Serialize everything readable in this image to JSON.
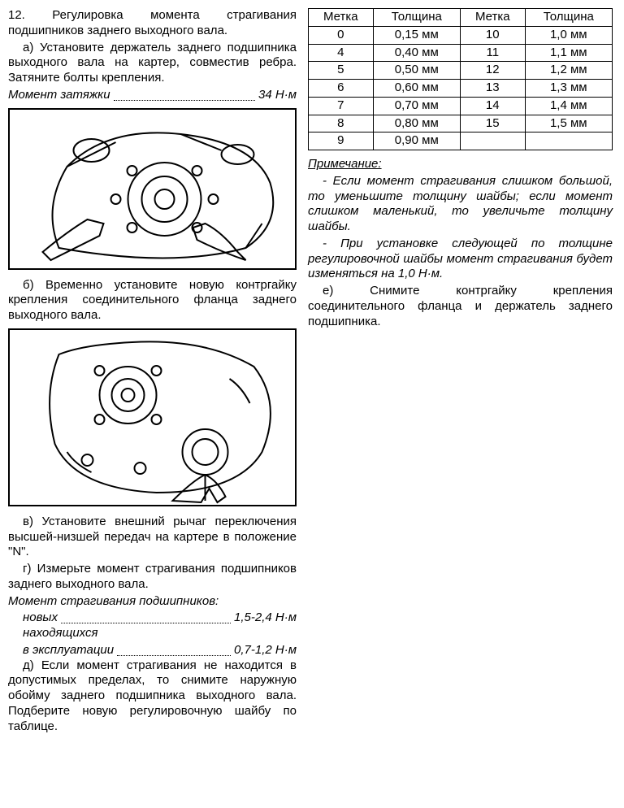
{
  "left": {
    "p1": "12. Регулировка момента страгивания подшипников заднего выходного вала.",
    "p2": "а) Установите держатель заднего подшипника выходного вала на картер, совместив ребра. Затяните болты крепления.",
    "torque1_label": "Момент затяжки",
    "torque1_value": "34 Н·м",
    "p3": "б) Временно установите новую контргайку крепления соединительного фланца заднего выходного вала.",
    "p4": "в) Установите внешний рычаг переключения высшей-низшей передач на картере в положение \"N\".",
    "p5": "г) Измерьте момент страгивания подшипников заднего выходного вала.",
    "torque2_header": "Момент страгивания подшипников:",
    "torque2a_label": "новых",
    "torque2a_value": "1,5-2,4 Н·м",
    "torque2b_label1": "находящихся",
    "torque2b_label2": "в эксплуатации",
    "torque2b_value": "0,7-1,2 Н·м",
    "p6": "д) Если момент страгивания не находится в допустимых пределах, то снимите наружную обойму заднего подшипника выходного вала. Подберите новую регулировочную шайбу по таблице."
  },
  "right": {
    "table": {
      "headers": [
        "Метка",
        "Толщина",
        "Метка",
        "Толщина"
      ],
      "rows": [
        [
          "0",
          "0,15 мм",
          "10",
          "1,0 мм"
        ],
        [
          "4",
          "0,40 мм",
          "11",
          "1,1 мм"
        ],
        [
          "5",
          "0,50 мм",
          "12",
          "1,2 мм"
        ],
        [
          "6",
          "0,60 мм",
          "13",
          "1,3 мм"
        ],
        [
          "7",
          "0,70 мм",
          "14",
          "1,4 мм"
        ],
        [
          "8",
          "0,80 мм",
          "15",
          "1,5 мм"
        ],
        [
          "9",
          "0,90 мм",
          "",
          ""
        ]
      ]
    },
    "note_head": "Примечание:",
    "note1": "- Если момент страгивания слишком большой, то уменьшите толщину шайбы; если момент слишком маленький, то увеличьте толщину шайбы.",
    "note2": "- При установке следующей по толщине регулировочной шайбы момент страгивания будет изменяться на 1,0 Н·м.",
    "p7": "е) Снимите контргайку крепления соединительного фланца и держатель заднего подшипника."
  }
}
